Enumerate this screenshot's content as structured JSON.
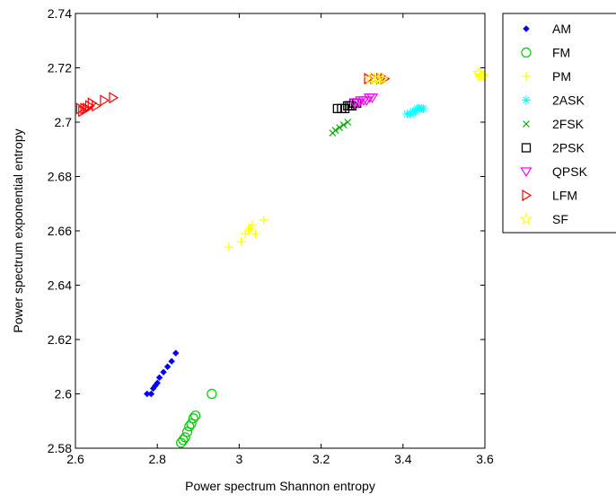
{
  "chart_data": {
    "type": "scatter",
    "title": "",
    "xlabel": "Power spectrum Shannon entropy",
    "ylabel": "Power spectrum exponential entropy",
    "xlim": [
      2.6,
      3.6
    ],
    "ylim": [
      2.58,
      2.74
    ],
    "xticks": [
      "2.6",
      "2.8",
      "3",
      "3.2",
      "3.4",
      "3.6"
    ],
    "yticks": [
      "2.58",
      "2.6",
      "2.62",
      "2.64",
      "2.66",
      "2.68",
      "2.7",
      "2.72",
      "2.74"
    ],
    "grid": false,
    "legend_position": "outside-top-right",
    "series": [
      {
        "name": "AM",
        "color": "#0000ff",
        "marker": "diamond",
        "points": [
          [
            2.775,
            2.6
          ],
          [
            2.785,
            2.6
          ],
          [
            2.79,
            2.602
          ],
          [
            2.795,
            2.603
          ],
          [
            2.8,
            2.604
          ],
          [
            2.805,
            2.606
          ],
          [
            2.815,
            2.608
          ],
          [
            2.825,
            2.61
          ],
          [
            2.835,
            2.612
          ],
          [
            2.845,
            2.615
          ]
        ]
      },
      {
        "name": "FM",
        "color": "#00cc00",
        "marker": "circle",
        "points": [
          [
            2.858,
            2.582
          ],
          [
            2.863,
            2.583
          ],
          [
            2.868,
            2.584
          ],
          [
            2.873,
            2.586
          ],
          [
            2.878,
            2.588
          ],
          [
            2.883,
            2.589
          ],
          [
            2.888,
            2.591
          ],
          [
            2.893,
            2.592
          ],
          [
            2.933,
            2.6
          ]
        ]
      },
      {
        "name": "PM",
        "color": "#ffff00",
        "marker": "plus",
        "points": [
          [
            2.975,
            2.654
          ],
          [
            3.005,
            2.656
          ],
          [
            3.015,
            2.659
          ],
          [
            3.022,
            2.66
          ],
          [
            3.027,
            2.661
          ],
          [
            3.032,
            2.662
          ],
          [
            3.04,
            2.659
          ],
          [
            3.06,
            2.664
          ]
        ]
      },
      {
        "name": "2ASK",
        "color": "#00ffff",
        "marker": "asterisk",
        "points": [
          [
            3.41,
            2.703
          ],
          [
            3.418,
            2.703
          ],
          [
            3.425,
            2.704
          ],
          [
            3.43,
            2.704
          ],
          [
            3.435,
            2.705
          ],
          [
            3.44,
            2.705
          ],
          [
            3.445,
            2.705
          ],
          [
            3.45,
            2.705
          ]
        ]
      },
      {
        "name": "2FSK",
        "color": "#00b000",
        "marker": "x",
        "points": [
          [
            3.228,
            2.696
          ],
          [
            3.235,
            2.697
          ],
          [
            3.245,
            2.698
          ],
          [
            3.255,
            2.699
          ],
          [
            3.265,
            2.7
          ]
        ]
      },
      {
        "name": "2PSK",
        "color": "#000000",
        "marker": "square",
        "points": [
          [
            3.24,
            2.705
          ],
          [
            3.25,
            2.705
          ],
          [
            3.258,
            2.705
          ],
          [
            3.265,
            2.706
          ],
          [
            3.27,
            2.706
          ],
          [
            3.275,
            2.706
          ],
          [
            3.28,
            2.707
          ],
          [
            3.287,
            2.707
          ]
        ]
      },
      {
        "name": "QPSK",
        "color": "#ff00ff",
        "marker": "triangle-down",
        "points": [
          [
            3.282,
            2.707
          ],
          [
            3.29,
            2.707
          ],
          [
            3.297,
            2.708
          ],
          [
            3.304,
            2.708
          ],
          [
            3.311,
            2.708
          ],
          [
            3.318,
            2.709
          ],
          [
            3.325,
            2.709
          ]
        ]
      },
      {
        "name": "LFM",
        "color": "#ff0000",
        "marker": "triangle-right",
        "points": [
          [
            2.612,
            2.705
          ],
          [
            2.617,
            2.704
          ],
          [
            2.622,
            2.705
          ],
          [
            2.628,
            2.705
          ],
          [
            2.634,
            2.706
          ],
          [
            2.64,
            2.707
          ],
          [
            2.65,
            2.706
          ],
          [
            2.67,
            2.708
          ],
          [
            2.692,
            2.709
          ],
          [
            3.315,
            2.716
          ],
          [
            3.33,
            2.716
          ],
          [
            3.345,
            2.716
          ],
          [
            3.355,
            2.716
          ]
        ]
      },
      {
        "name": "SF",
        "color": "#ffff00",
        "marker": "star",
        "points": [
          [
            3.32,
            2.716
          ],
          [
            3.33,
            2.716
          ],
          [
            3.34,
            2.716
          ],
          [
            3.35,
            2.716
          ],
          [
            3.585,
            2.718
          ],
          [
            3.59,
            2.717
          ],
          [
            3.595,
            2.717
          ]
        ]
      }
    ]
  }
}
